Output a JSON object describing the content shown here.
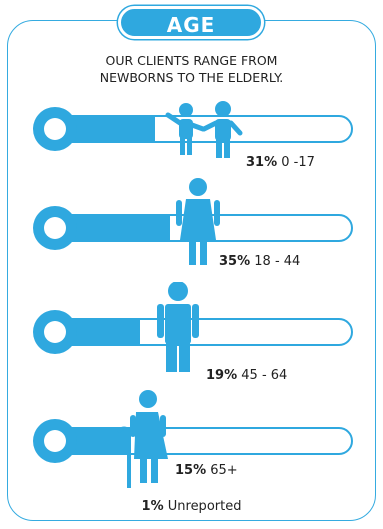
{
  "title": "AGE",
  "intro_line1": "OUR CLIENTS RANGE FROM",
  "intro_line2": "NEWBORNS TO THE ELDERLY.",
  "colors": {
    "accent": "#2fa8df",
    "bar_outline": "#2fa8df",
    "text": "#222222"
  },
  "groups": [
    {
      "percent": "31%",
      "range": "0 -17",
      "value": 31,
      "figure": "children-icon"
    },
    {
      "percent": "35%",
      "range": "18 - 44",
      "value": 35,
      "figure": "woman-icon"
    },
    {
      "percent": "19%",
      "range": "45 - 64",
      "value": 19,
      "figure": "man-icon"
    },
    {
      "percent": "15%",
      "range": "65+",
      "value": 15,
      "figure": "elderly-woman-icon"
    }
  ],
  "unreported": {
    "percent": "1%",
    "label": "Unreported"
  }
}
